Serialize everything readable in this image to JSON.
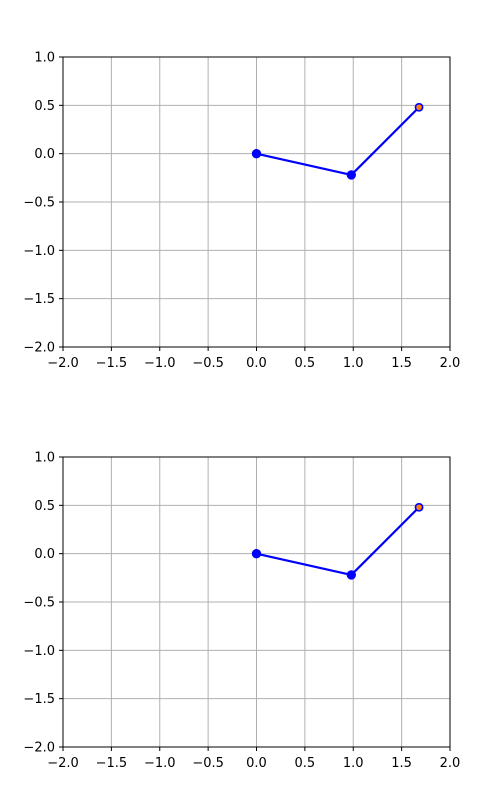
{
  "chart_data": [
    {
      "type": "line",
      "xlim": [
        -2.0,
        2.0
      ],
      "ylim": [
        -2.0,
        1.0
      ],
      "grid": true,
      "x_ticks": [
        "−2.0",
        "−1.5",
        "−1.0",
        "−0.5",
        "0.0",
        "0.5",
        "1.0",
        "1.5",
        "2.0"
      ],
      "y_ticks": [
        "−2.0",
        "−1.5",
        "−1.0",
        "−0.5",
        "0.0",
        "0.5",
        "1.0"
      ],
      "x_tick_values": [
        -2.0,
        -1.5,
        -1.0,
        -0.5,
        0.0,
        0.5,
        1.0,
        1.5,
        2.0
      ],
      "y_tick_values": [
        -2.0,
        -1.5,
        -1.0,
        -0.5,
        0.0,
        0.5,
        1.0
      ],
      "series": [
        {
          "x": [
            0.0,
            0.98,
            1.68
          ],
          "y": [
            0.0,
            -0.22,
            0.48
          ],
          "color": "#0000ff",
          "marker": "circle",
          "end_marker_fill": "#ff7f0e"
        }
      ]
    },
    {
      "type": "line",
      "xlim": [
        -2.0,
        2.0
      ],
      "ylim": [
        -2.0,
        1.0
      ],
      "grid": true,
      "x_ticks": [
        "−2.0",
        "−1.5",
        "−1.0",
        "−0.5",
        "0.0",
        "0.5",
        "1.0",
        "1.5",
        "2.0"
      ],
      "y_ticks": [
        "−2.0",
        "−1.5",
        "−1.0",
        "−0.5",
        "0.0",
        "0.5",
        "1.0"
      ],
      "x_tick_values": [
        -2.0,
        -1.5,
        -1.0,
        -0.5,
        0.0,
        0.5,
        1.0,
        1.5,
        2.0
      ],
      "y_tick_values": [
        -2.0,
        -1.5,
        -1.0,
        -0.5,
        0.0,
        0.5,
        1.0
      ],
      "series": [
        {
          "x": [
            0.0,
            0.98,
            1.68
          ],
          "y": [
            0.0,
            -0.22,
            0.48
          ],
          "color": "#0000ff",
          "marker": "circle",
          "end_marker_fill": "#ff7f0e"
        }
      ]
    }
  ],
  "colors": {
    "grid": "#b0b0b0",
    "axes": "#000000"
  }
}
